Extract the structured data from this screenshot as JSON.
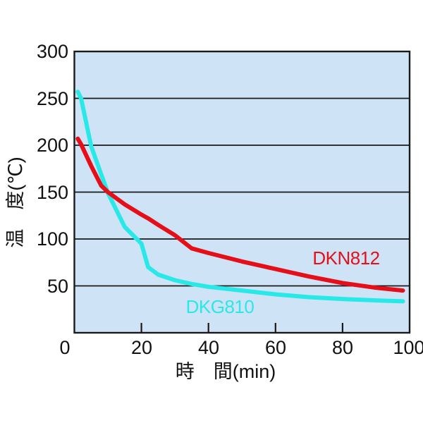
{
  "chart_data": {
    "type": "line",
    "title": "",
    "xlabel": "時　間(min)",
    "ylabel": "温　度(℃)",
    "xlim": [
      0,
      100
    ],
    "ylim": [
      0,
      300
    ],
    "x_tick_labels": [
      "0",
      "20",
      "40",
      "60",
      "80",
      "100"
    ],
    "y_tick_labels": [
      "300",
      "250",
      "200",
      "150",
      "100",
      "50"
    ],
    "grid_y_values": [
      50,
      100,
      150,
      200,
      250
    ],
    "inner_tick_x_values": [
      20,
      40,
      60,
      80
    ],
    "grid": "horizontal",
    "legend_position": "inline-labels-on-plot",
    "plot_bg_color": "#cfe3f7",
    "grid_color": "#1a1a1a",
    "text_color": "#111111",
    "x": [
      1,
      2,
      5,
      8,
      10,
      15,
      20,
      22,
      25,
      30,
      35,
      40,
      50,
      60,
      70,
      80,
      90,
      98
    ],
    "series": [
      {
        "name": "DKG810",
        "color": "#29e8e8",
        "values": [
          257,
          250,
          199,
          169,
          149,
          113,
          95,
          70,
          62,
          56,
          52,
          49,
          45,
          41,
          38,
          36,
          34.5,
          33.5
        ]
      },
      {
        "name": "DKN812",
        "color": "#e50f1a",
        "values": [
          207,
          201,
          178,
          157,
          150,
          137,
          126,
          122,
          115,
          104,
          90,
          85,
          76,
          68,
          60,
          53,
          48,
          45
        ]
      }
    ]
  }
}
